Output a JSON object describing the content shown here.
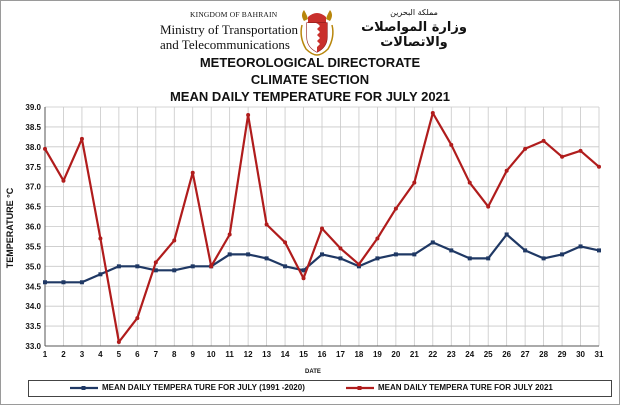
{
  "header": {
    "kingdom": "KINGDOM OF BAHRAIN",
    "ministry_line1": "Ministry of Transportation",
    "ministry_line2": "and Telecommunications",
    "arabic_small": "مملكة البحرين",
    "arabic_big": "وزارة المواصلات والاتصالات",
    "title1": "METEOROLOGICAL DIRECTORATE",
    "title2": "CLIMATE SECTION",
    "title3": "MEAN DAILY TEMPERATURE FOR JULY 2021"
  },
  "colors": {
    "normal": "#1f3864",
    "year": "#b01c1c",
    "grid": "#c8c8c8"
  },
  "chart_data": {
    "type": "line",
    "title": "MEAN DAILY TEMPERATURE FOR JULY 2021",
    "xlabel": "DATE",
    "ylabel": "TEMPERATURE °C",
    "ylim": [
      33.0,
      39.0
    ],
    "ytick_step": 0.5,
    "grid": true,
    "legend_position": "bottom",
    "x": [
      1,
      2,
      3,
      4,
      5,
      6,
      7,
      8,
      9,
      10,
      11,
      12,
      13,
      14,
      15,
      16,
      17,
      18,
      19,
      20,
      21,
      22,
      23,
      24,
      25,
      26,
      27,
      28,
      29,
      30,
      31
    ],
    "series": [
      {
        "name": "MEAN DAILY TEMPERA TURE FOR JULY (1991 -2020)",
        "color": "#1f3864",
        "values": [
          34.6,
          34.6,
          34.6,
          34.8,
          35.0,
          35.0,
          34.9,
          34.9,
          35.0,
          35.0,
          35.3,
          35.3,
          35.2,
          35.0,
          34.9,
          35.3,
          35.2,
          35.0,
          35.2,
          35.3,
          35.3,
          35.6,
          35.4,
          35.2,
          35.2,
          35.8,
          35.4,
          35.2,
          35.3,
          35.5,
          35.4
        ]
      },
      {
        "name": "MEAN DAILY TEMPERA TURE FOR JULY 2021",
        "color": "#b01c1c",
        "values": [
          37.95,
          37.15,
          38.2,
          35.7,
          33.1,
          33.7,
          35.1,
          35.65,
          37.35,
          35.0,
          35.8,
          38.8,
          36.05,
          35.6,
          34.7,
          35.95,
          35.45,
          35.05,
          35.7,
          36.45,
          37.1,
          38.85,
          38.05,
          37.1,
          36.5,
          37.4,
          37.95,
          38.15,
          37.75,
          37.9,
          37.5
        ]
      }
    ]
  }
}
